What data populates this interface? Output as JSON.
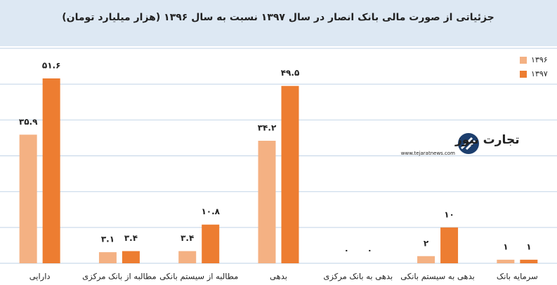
{
  "chart_data": {
    "type": "bar",
    "title": "جزئیاتی از صورت مالی بانک انصار در سال ۱۳۹۷ نسبت به سال ۱۳۹۶ (هزار میلیارد تومان)",
    "categories": [
      "دارایی",
      "مطالبه از بانک مرکزی",
      "مطالبه از سیستم بانکی",
      "بدهی",
      "بدهی به بانک مرکزی",
      "بدهی به سیستم بانکی",
      "سرمایه بانک"
    ],
    "series": [
      {
        "name": "۱۳۹۶",
        "color": "#f4b183",
        "values": [
          35.9,
          3.1,
          3.4,
          34.2,
          0,
          2,
          1
        ],
        "value_labels": [
          "۳۵.۹",
          "۳.۱",
          "۳.۴",
          "۳۴.۲",
          "۰",
          "۲",
          "۱"
        ]
      },
      {
        "name": "۱۳۹۷",
        "color": "#ed7d31",
        "values": [
          51.6,
          3.4,
          10.8,
          49.5,
          0,
          10,
          1
        ],
        "value_labels": [
          "۵۱.۶",
          "۳.۴",
          "۱۰.۸",
          "۴۹.۵",
          "۰",
          "۱۰",
          "۱"
        ]
      }
    ],
    "ylim": [
      0,
      60
    ],
    "yticks": [
      0,
      10,
      20,
      30,
      40,
      50,
      60
    ],
    "grid": true,
    "legend": "top-right"
  },
  "watermark": {
    "name": "تجارت نیوز",
    "url": "www.tejaratnews.com"
  }
}
